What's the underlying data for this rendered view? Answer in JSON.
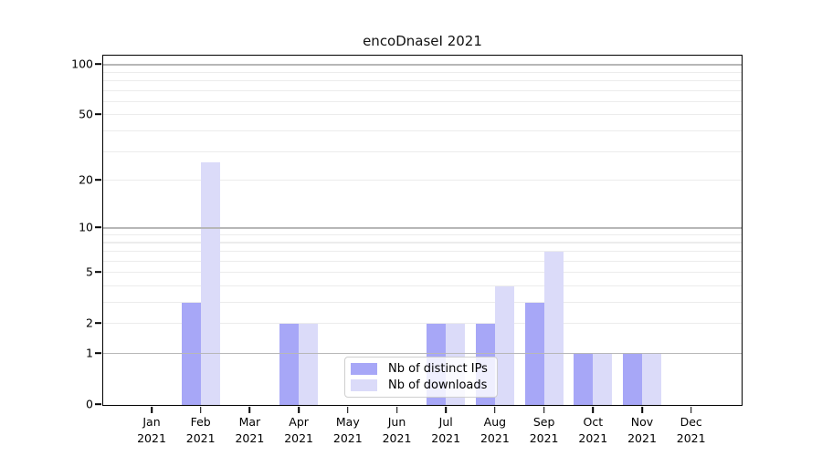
{
  "figure": {
    "background": "#ffffff"
  },
  "chart_data": {
    "type": "bar",
    "title": "encoDnaseI 2021",
    "categories": [
      "Jan 2021",
      "Feb 2021",
      "Mar 2021",
      "Apr 2021",
      "May 2021",
      "Jun 2021",
      "Jul 2021",
      "Aug 2021",
      "Sep 2021",
      "Oct 2021",
      "Nov 2021",
      "Dec 2021"
    ],
    "series": [
      {
        "name": "Nb of distinct IPs",
        "color": "#a7a7f7",
        "values": [
          0,
          3,
          0,
          2,
          0,
          0,
          2,
          2,
          3,
          1,
          1,
          0
        ]
      },
      {
        "name": "Nb of downloads",
        "color": "#dbdbf9",
        "values": [
          0,
          26,
          0,
          2,
          0,
          0,
          2,
          4,
          7,
          1,
          1,
          0
        ]
      }
    ],
    "xlabel": "",
    "ylabel": "",
    "yscale": "log1p",
    "yticks": [
      0,
      1,
      2,
      5,
      10,
      20,
      50,
      100
    ],
    "ylim": [
      0,
      112
    ],
    "grid": "horizontal, light minors at 2-9/20-90, darker lines at 1/10/100",
    "legend_position": "inside lower-center"
  }
}
